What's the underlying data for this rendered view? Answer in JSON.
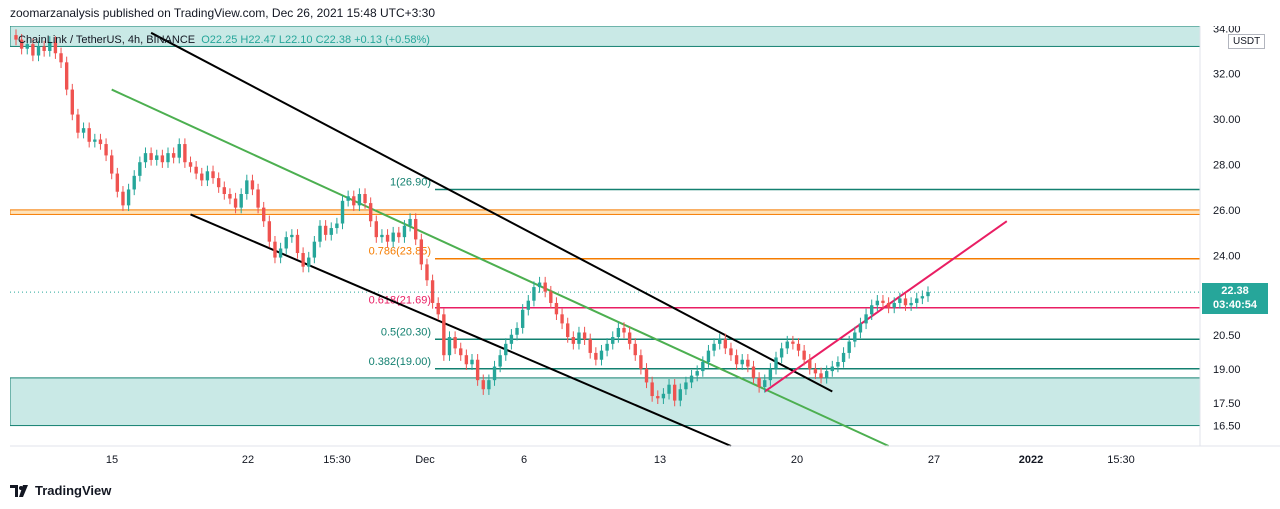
{
  "header": {
    "published": "zoomarzanalysis published on TradingView.com, Dec 26, 2021 15:48 UTC+3:30"
  },
  "legend": {
    "symbol": "ChainLink / TetherUS, 4h, BINANCE",
    "values": "O22.25  H22.47  L22.10  C22.38  +0.13 (+0.58%)"
  },
  "currency": "USDT",
  "last_price": {
    "price": "22.38",
    "countdown": "03:40:54"
  },
  "footer": {
    "brand": "TradingView"
  },
  "colors": {
    "up": "#26a69a",
    "down": "#ef5350",
    "channel": "#000000",
    "trend": "#4caf50",
    "support": "#e91e63",
    "fib_green": "#138070",
    "fib_orange": "#f57c00",
    "fib_red": "#e91e63",
    "zone_fill": "#b2dfdb",
    "zone_line": "#138070",
    "orange_zone": "#ffe0b2"
  },
  "chart_data": {
    "type": "candlestick",
    "title": "ChainLink / TetherUS, 4h, BINANCE",
    "ylabel": "USDT",
    "ylim": [
      15.6,
      34.1
    ],
    "y_ticks": [
      "16.50",
      "17.50",
      "19.00",
      "20.50",
      "22.00",
      "24.00",
      "26.00",
      "28.00",
      "30.00",
      "32.00",
      "34.00"
    ],
    "x_ticks": [
      "15",
      "22",
      "15:30",
      "Dec",
      "6",
      "13",
      "20",
      "27",
      "2022",
      "15:30"
    ],
    "grid": false,
    "last_price": 22.38,
    "fib_levels": [
      {
        "label": "1(26.90)",
        "value": 26.9
      },
      {
        "label": "0.786(23.85)",
        "value": 23.85
      },
      {
        "label": "0.618(21.69)",
        "value": 21.69
      },
      {
        "label": "0.5(20.30)",
        "value": 20.3
      },
      {
        "label": "0.382(19.00)",
        "value": 19.0
      }
    ],
    "zones": [
      {
        "name": "resistance zone",
        "from": 33.2,
        "to": 34.1
      },
      {
        "name": "orange zone",
        "from": 25.8,
        "to": 26.0
      },
      {
        "name": "support zone",
        "from": 16.5,
        "to": 18.6
      }
    ],
    "series": [
      {
        "values": [
          33.5,
          33.1,
          33.3,
          32.8,
          33.2,
          33.0,
          33.4,
          32.9,
          32.5,
          31.3,
          30.2,
          29.4,
          29.6,
          29.0,
          29.1,
          28.9,
          28.4,
          27.6,
          26.8,
          26.2,
          26.9,
          27.5,
          28.1,
          28.5,
          28.2,
          28.4,
          28.1,
          28.5,
          28.3,
          28.9,
          28.1,
          27.9,
          27.6,
          27.3,
          27.7,
          27.4,
          27.0,
          26.7,
          26.5,
          26.1,
          26.7,
          27.3,
          26.9,
          26.1,
          25.5,
          24.6,
          23.9,
          24.3,
          24.8,
          24.9,
          24.1,
          23.5,
          23.9,
          24.6,
          25.3,
          24.9,
          25.2,
          25.4,
          26.4,
          26.6,
          26.2,
          26.7,
          26.3,
          25.5,
          24.8,
          24.9,
          24.6,
          25.0,
          24.8,
          25.3,
          25.6,
          24.7,
          23.6,
          22.9,
          21.9,
          21.4,
          19.6,
          20.4,
          19.9,
          19.6,
          19.2,
          19.4,
          18.5,
          18.1,
          18.5,
          19.1,
          19.6,
          20.1,
          20.5,
          20.8,
          21.6,
          22.0,
          22.6,
          22.8,
          22.4,
          21.9,
          21.4,
          21.0,
          20.4,
          20.1,
          20.6,
          20.3,
          19.7,
          19.4,
          19.8,
          20.1,
          20.4,
          20.8,
          20.6,
          20.1,
          19.6,
          19.0,
          18.4,
          17.8,
          17.7,
          17.9,
          18.3,
          17.6,
          18.1,
          18.4,
          18.7,
          18.9,
          19.3,
          19.8,
          20.1,
          20.3,
          19.9,
          19.6,
          19.2,
          19.4,
          19.1,
          18.6,
          18.2,
          18.5,
          19.0,
          19.5,
          19.9,
          20.2,
          20.1,
          19.8,
          19.4,
          19.0,
          18.8,
          18.6,
          18.9,
          19.1,
          19.3,
          19.7,
          20.2,
          20.6,
          21.0,
          21.4,
          21.8,
          22.0,
          21.9,
          21.7,
          21.9,
          22.1,
          21.8,
          21.9,
          22.1,
          22.2,
          22.38
        ]
      }
    ]
  }
}
